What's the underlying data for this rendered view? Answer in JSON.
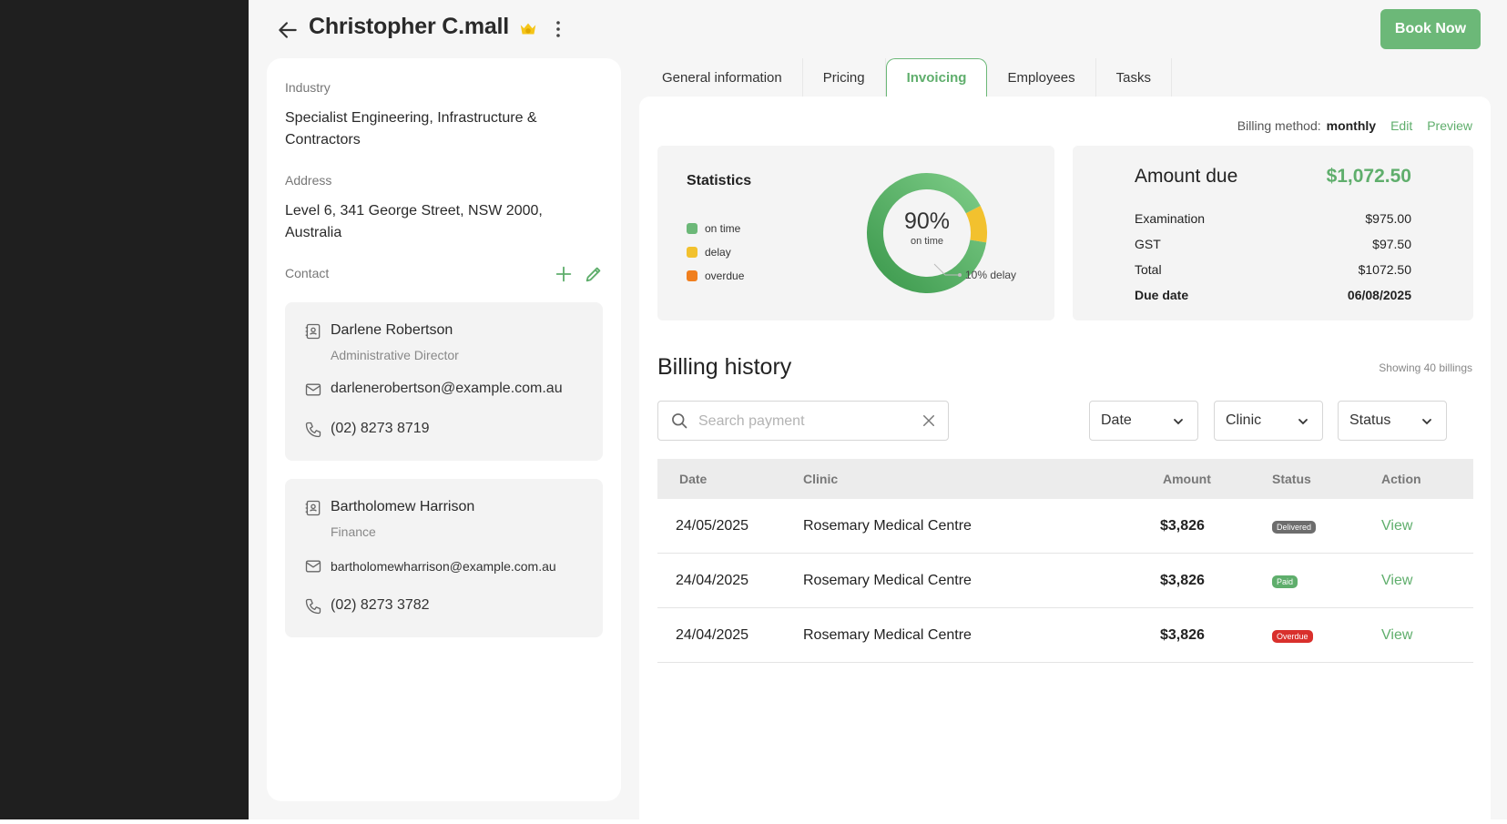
{
  "header": {
    "title": "Christopher C.mall",
    "book_label": "Book Now"
  },
  "profile": {
    "industry_label": "Industry",
    "industry_value": "Specialist Engineering, Infrastructure & Contractors",
    "address_label": "Address",
    "address_value": "Level 6, 341 George Street, NSW 2000, Australia",
    "contact_label": "Contact",
    "contacts": [
      {
        "name": "Darlene Robertson",
        "role": "Administrative Director",
        "email": "darlenerobertson@example.com.au",
        "phone": "(02) 8273 8719"
      },
      {
        "name": "Bartholomew Harrison",
        "role": "Finance",
        "email": "bartholomewharrison@example.com.au",
        "phone": "(02) 8273 3782"
      }
    ]
  },
  "tabs": [
    {
      "label": "General information"
    },
    {
      "label": "Pricing"
    },
    {
      "label": "Invoicing",
      "active": true
    },
    {
      "label": "Employees"
    },
    {
      "label": "Tasks"
    }
  ],
  "billing": {
    "method_label": "Billing method:",
    "method_value": "monthly",
    "edit_label": "Edit",
    "preview_label": "Preview"
  },
  "statistics": {
    "title": "Statistics",
    "legend": [
      {
        "label": "on time",
        "color": "#6cb878"
      },
      {
        "label": "delay",
        "color": "#f2c12e"
      },
      {
        "label": "overdue",
        "color": "#f07f1e"
      }
    ],
    "center_value": "90%",
    "center_label": "on time",
    "callout": "10% delay"
  },
  "chart_data": {
    "type": "pie",
    "labels": [
      "on time",
      "delay",
      "overdue"
    ],
    "values": [
      90,
      10,
      0
    ],
    "colors": [
      "#6cb878",
      "#f2c12e",
      "#f07f1e"
    ]
  },
  "amount_due": {
    "title": "Amount due",
    "amount": "$1,072.50",
    "rows": [
      {
        "label": "Examination",
        "value": "$975.00"
      },
      {
        "label": "GST",
        "value": "$97.50"
      },
      {
        "label": "Total",
        "value": "$1072.50"
      },
      {
        "label": "Due date",
        "value": "06/08/2025"
      }
    ]
  },
  "history": {
    "title": "Billing history",
    "showing": "Showing 40 billings",
    "search_placeholder": "Search payment",
    "filters": [
      "Date",
      "Clinic",
      "Status"
    ],
    "columns": [
      "Date",
      "Clinic",
      "Amount",
      "Status",
      "Action"
    ],
    "rows": [
      {
        "date": "24/05/2025",
        "clinic": "Rosemary Medical Centre",
        "amount": "$3,826",
        "status": "Delivered",
        "status_color": "#6d6d6d",
        "action": "View"
      },
      {
        "date": "24/04/2025",
        "clinic": "Rosemary Medical Centre",
        "amount": "$3,826",
        "status": "Paid",
        "status_color": "#5fae6c",
        "action": "View"
      },
      {
        "date": "24/04/2025",
        "clinic": "Rosemary Medical Centre",
        "amount": "$3,826",
        "status": "Overdue",
        "status_color": "#d9302c",
        "action": "View"
      }
    ]
  }
}
